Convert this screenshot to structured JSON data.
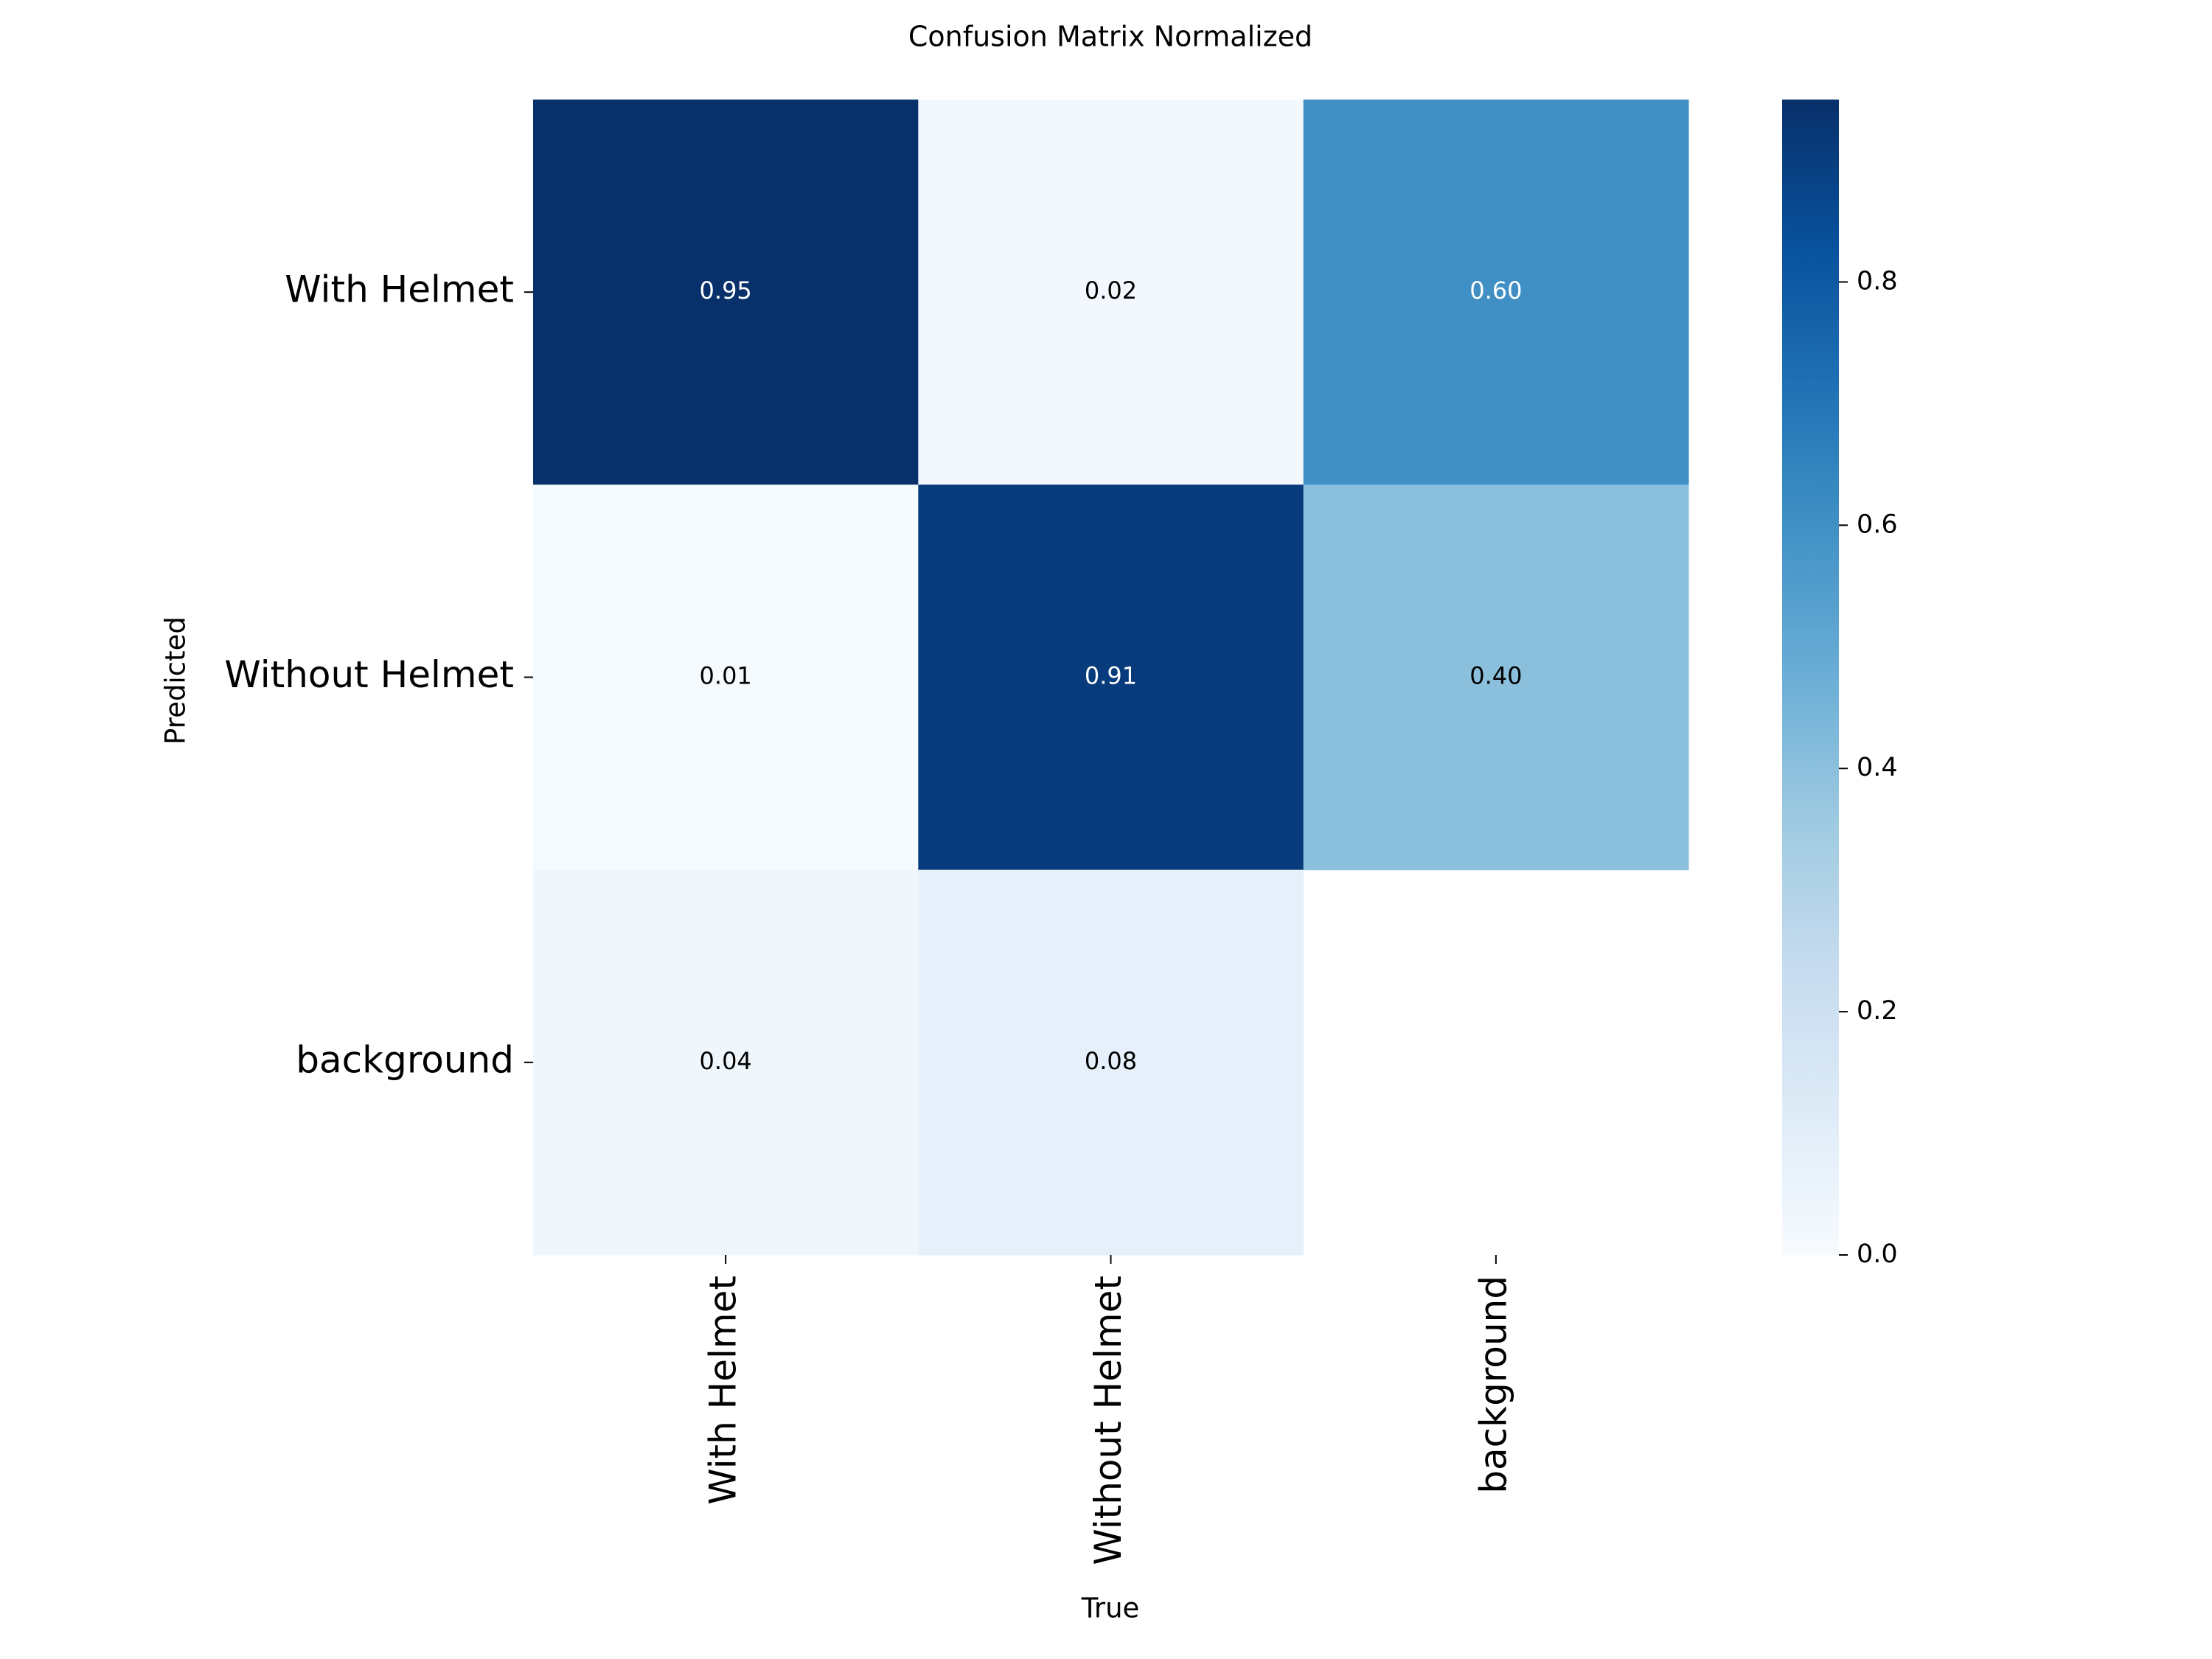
{
  "chart_data": {
    "type": "heatmap",
    "title": "Confusion Matrix Normalized",
    "x_label": "True",
    "y_label": "Predicted",
    "x_categories": [
      "With Helmet",
      "Without Helmet",
      "background"
    ],
    "y_categories": [
      "With Helmet",
      "Without Helmet",
      "background"
    ],
    "values": [
      [
        0.95,
        0.02,
        0.6
      ],
      [
        0.01,
        0.91,
        0.4
      ],
      [
        0.04,
        0.08,
        null
      ]
    ],
    "value_labels": [
      [
        "0.95",
        "0.02",
        "0.60"
      ],
      [
        "0.01",
        "0.91",
        "0.40"
      ],
      [
        "0.04",
        "0.08",
        null
      ]
    ],
    "colormap": "Blues",
    "clim": [
      0,
      0.95
    ],
    "cticks": [
      {
        "value": 0,
        "label": "0.0"
      },
      0.2,
      0.4,
      0.6,
      0.8
    ]
  }
}
